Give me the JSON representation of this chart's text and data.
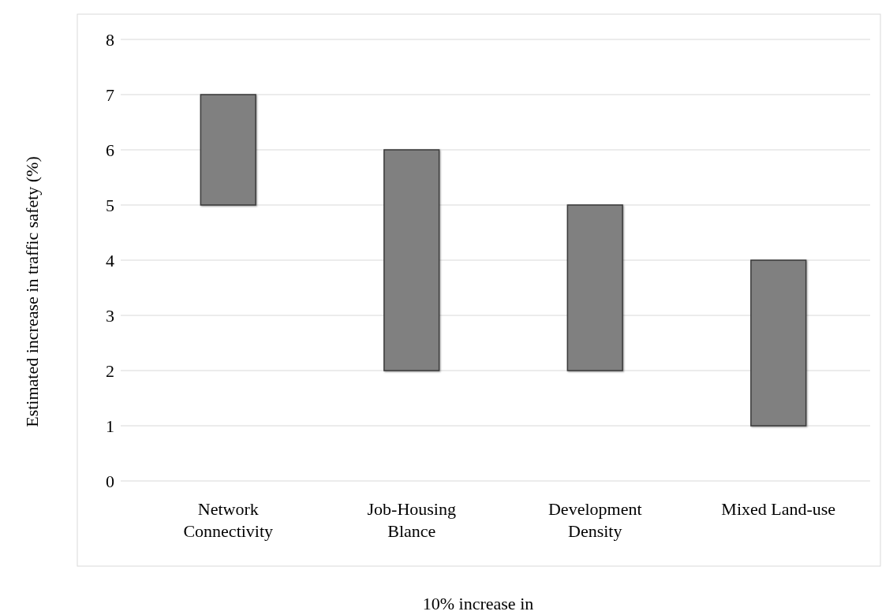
{
  "chart_data": {
    "type": "bar",
    "xlabel": "10% increase in",
    "ylabel": "Estimated increase in traffic safety (%)",
    "categories": [
      "Network Connectivity",
      "Job-Housing Blance",
      "Development Density",
      "Mixed Land-use"
    ],
    "values": [
      2,
      4,
      3,
      3
    ],
    "base": [
      5,
      2,
      2,
      1
    ],
    "color": "#808080",
    "ylim": [
      0,
      8
    ],
    "yticks": [
      0,
      1,
      2,
      3,
      4,
      5,
      6,
      7,
      8
    ],
    "grid": "y"
  }
}
